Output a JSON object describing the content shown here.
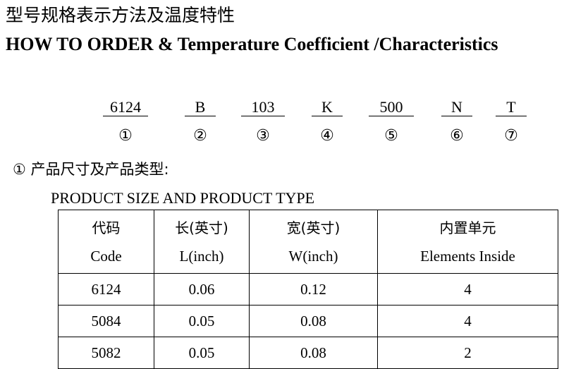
{
  "title_cn": "型号规格表示方法及温度特性",
  "title_en": "HOW TO ORDER & Temperature Coefficient /Characteristics",
  "code_parts": [
    "6124",
    "B",
    "103",
    "K",
    "500",
    "N",
    "T"
  ],
  "code_numbers": [
    "①",
    "②",
    "③",
    "④",
    "⑤",
    "⑥",
    "⑦"
  ],
  "section1": "① 产品尺寸及产品类型:",
  "section1_en": "PRODUCT SIZE AND PRODUCT TYPE",
  "table": {
    "headers": [
      {
        "cn": "代码",
        "en": "Code"
      },
      {
        "cn": "长(英寸)",
        "en": "L(inch)"
      },
      {
        "cn": "宽(英寸)",
        "en": "W(inch)"
      },
      {
        "cn": "内置单元",
        "en": "Elements Inside"
      }
    ],
    "rows": [
      [
        "6124",
        "0.06",
        "0.12",
        "4"
      ],
      [
        "5084",
        "0.05",
        "0.08",
        "4"
      ],
      [
        "5082",
        "0.05",
        "0.08",
        "2"
      ]
    ]
  }
}
